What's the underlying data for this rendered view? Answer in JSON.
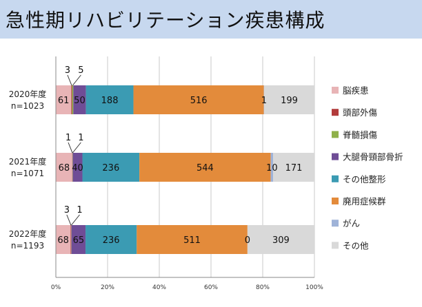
{
  "title": "急性期リハビリテーション疾患構成",
  "colors": {
    "title_bg": "#c7d8ef"
  },
  "chart_data": {
    "type": "bar",
    "orientation": "horizontal",
    "stacked": "percent",
    "categories": [
      [
        "2020年度",
        "n=1023"
      ],
      [
        "2021年度",
        "n=1071"
      ],
      [
        "2022年度",
        "n=1193"
      ]
    ],
    "series": [
      {
        "name": "脳疾患",
        "color": "#e8b4b6",
        "values": [
          61,
          68,
          68
        ]
      },
      {
        "name": "頭部外傷",
        "color": "#b23b3b",
        "values": [
          3,
          1,
          3
        ]
      },
      {
        "name": "脊髄損傷",
        "color": "#8fb14a",
        "values": [
          5,
          1,
          1
        ]
      },
      {
        "name": "大腿骨頸部骨折",
        "color": "#6f4d96",
        "values": [
          50,
          40,
          65
        ]
      },
      {
        "name": "その他整形",
        "color": "#3b9bb3",
        "values": [
          188,
          236,
          236
        ]
      },
      {
        "name": "廃用症候群",
        "color": "#e38b3b",
        "values": [
          516,
          544,
          511
        ]
      },
      {
        "name": "がん",
        "color": "#9fb3d8",
        "values": [
          1,
          10,
          0
        ]
      },
      {
        "name": "その他",
        "color": "#d9d9d9",
        "values": [
          199,
          171,
          309
        ]
      }
    ],
    "data_labels": [
      [
        "61",
        "3",
        "5",
        "50",
        "188",
        "516",
        "1",
        "199"
      ],
      [
        "68",
        "1",
        "1",
        "40",
        "236",
        "544",
        "10",
        "171"
      ],
      [
        "68",
        "3",
        "1",
        "65",
        "236",
        "511",
        "0",
        "309"
      ]
    ],
    "x_ticks": [
      "0%",
      "20%",
      "40%",
      "60%",
      "80%",
      "100%"
    ],
    "xlim": [
      0,
      100
    ],
    "grid": true,
    "legend": "right"
  }
}
